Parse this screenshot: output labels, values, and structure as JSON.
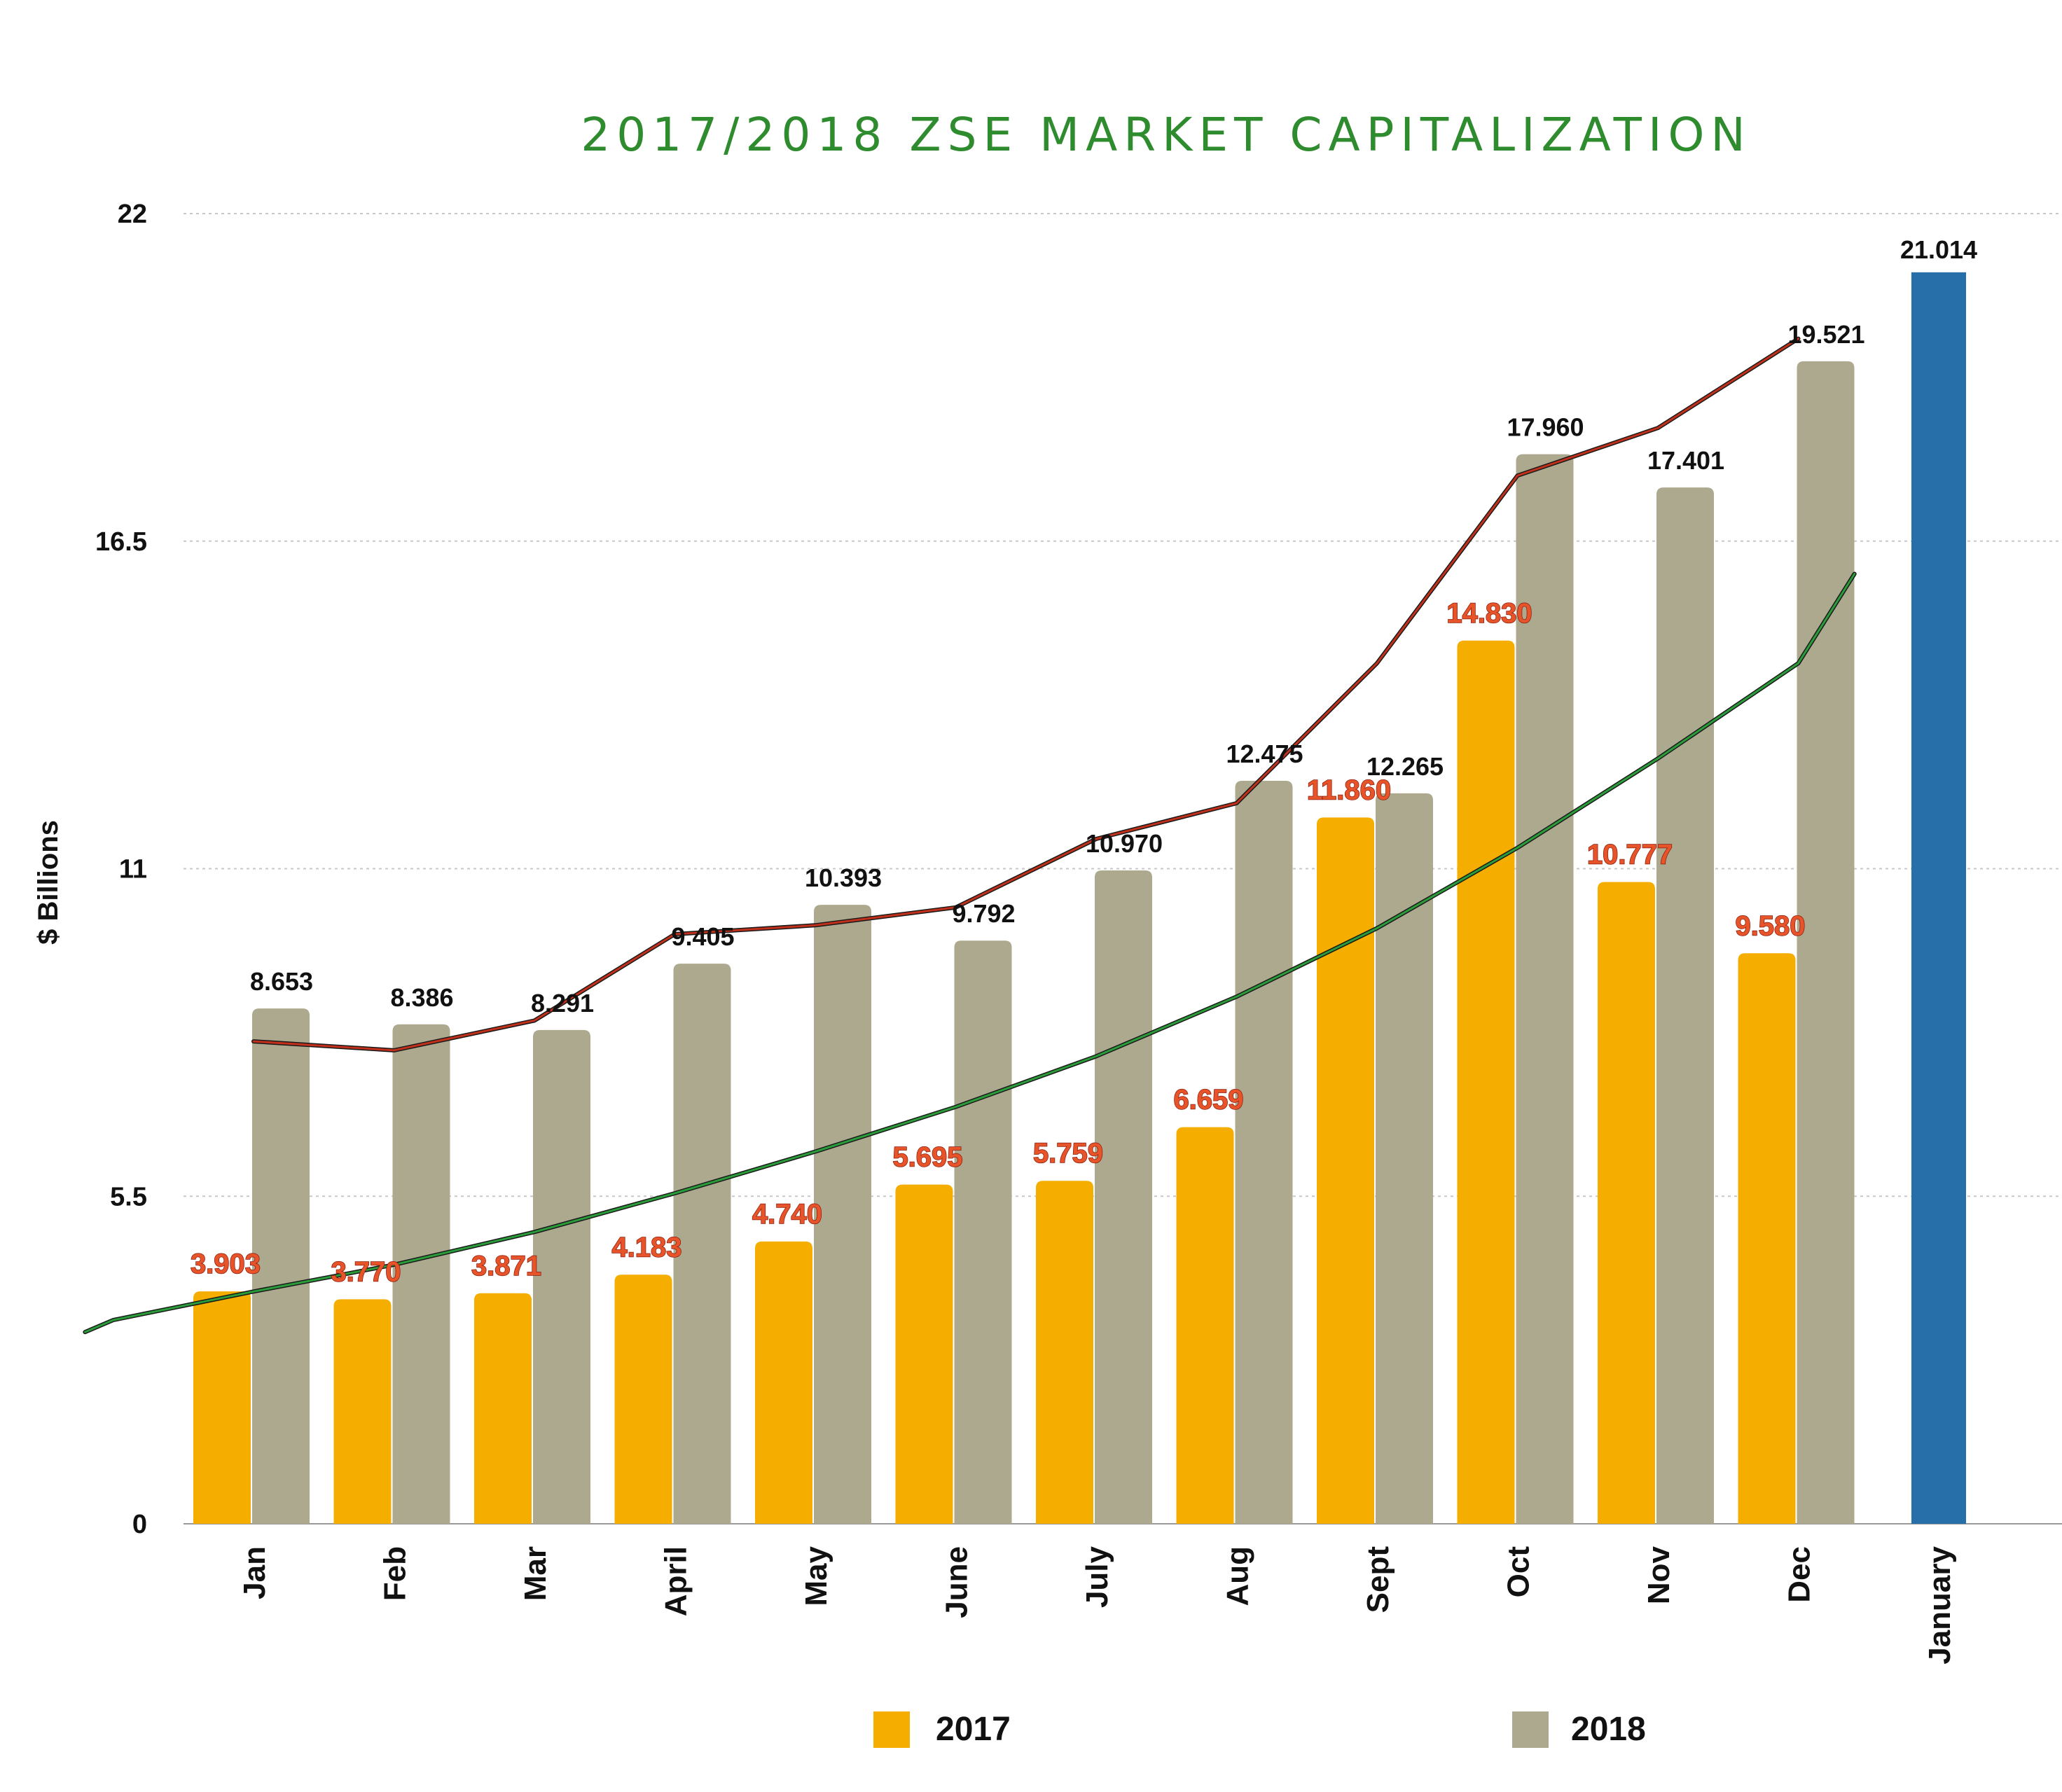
{
  "chart_data": {
    "type": "bar",
    "title": "2017/2018 ZSE MARKET CAPITALIZATION",
    "ylabel": "$ Billions",
    "xlabel": "",
    "ylim": [
      0,
      22
    ],
    "yticks": [
      "0",
      "5.5",
      "11",
      "16.5",
      "22"
    ],
    "grid": true,
    "legend_position": "bottom",
    "categories": [
      "Jan",
      "Feb",
      "Mar",
      "April",
      "May",
      "June",
      "July",
      "Aug",
      "Sept",
      "Oct",
      "Nov",
      "Dec",
      "January"
    ],
    "series": [
      {
        "name": "2017",
        "color": "#f5ae00",
        "values": [
          3.903,
          3.77,
          3.871,
          4.183,
          4.74,
          5.695,
          5.759,
          6.659,
          11.86,
          14.83,
          10.777,
          9.58,
          null
        ],
        "labels": [
          "3.903",
          "3.770",
          "3.871",
          "4.183",
          "4.740",
          "5.695",
          "5.759",
          "6.659",
          "11.860",
          "14.830",
          "10.777",
          "9.580",
          ""
        ]
      },
      {
        "name": "2018",
        "color": "#ada98f",
        "values": [
          8.653,
          8.386,
          8.291,
          9.405,
          10.393,
          9.792,
          10.97,
          12.475,
          12.265,
          17.96,
          17.401,
          19.521,
          null
        ],
        "labels": [
          "8.653",
          "8.386",
          "8.291",
          "9.405",
          "10.393",
          "9.792",
          "10.970",
          "12.475",
          "12.265",
          "17.960",
          "17.401",
          "19.521",
          ""
        ]
      },
      {
        "name": "",
        "color": "#266fa8",
        "values": [
          null,
          null,
          null,
          null,
          null,
          null,
          null,
          null,
          null,
          null,
          null,
          null,
          21.014
        ],
        "labels": [
          "",
          "",
          "",
          "",
          "",
          "",
          "",
          "",
          "",
          "",
          "",
          "",
          "21.014"
        ]
      }
    ],
    "trend_lines": [
      {
        "color": "#c0301a",
        "x": [
          1,
          2,
          3,
          4,
          5,
          6,
          7,
          8,
          9,
          10,
          11,
          12
        ],
        "y": [
          8.1,
          7.95,
          8.45,
          9.9,
          10.05,
          10.35,
          11.5,
          12.1,
          14.45,
          17.6,
          18.4,
          19.9
        ]
      },
      {
        "color": "#2a9d3a",
        "x": [
          -0.2,
          0,
          1,
          2,
          3,
          4,
          5,
          6,
          7,
          8,
          9,
          10,
          11,
          12,
          12.4
        ],
        "y": [
          3.22,
          3.42,
          3.9,
          4.35,
          4.9,
          5.55,
          6.25,
          7.0,
          7.85,
          8.85,
          10.0,
          11.35,
          12.85,
          14.45,
          15.95
        ]
      }
    ]
  }
}
